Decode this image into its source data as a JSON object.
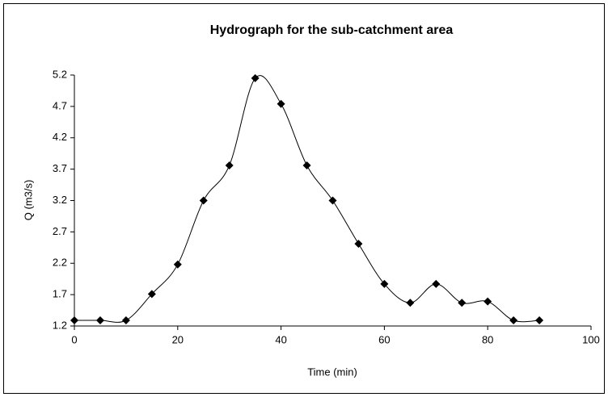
{
  "chart_data": {
    "type": "scatter",
    "title": "Hydrograph for the sub-catchment area",
    "x_label": "Time (min)",
    "y_label": "Q (m3/s)",
    "x": [
      0,
      5,
      10,
      15,
      20,
      25,
      30,
      35,
      40,
      45,
      50,
      55,
      60,
      65,
      70,
      75,
      80,
      85,
      90
    ],
    "values": [
      1.29,
      1.29,
      1.29,
      1.71,
      2.18,
      3.2,
      3.76,
      5.15,
      4.74,
      3.76,
      3.2,
      2.51,
      1.87,
      1.57,
      1.87,
      1.57,
      1.59,
      1.29,
      1.29
    ],
    "color": "#000000",
    "smooth": true,
    "xlim": [
      0,
      100
    ],
    "xticks": [
      0,
      20,
      40,
      60,
      80,
      100
    ],
    "ylim": [
      1.2,
      5.2
    ],
    "yticks": [
      1.2,
      1.7,
      2.2,
      2.7,
      3.2,
      3.7,
      4.2,
      4.7,
      5.2
    ],
    "grid": false
  }
}
